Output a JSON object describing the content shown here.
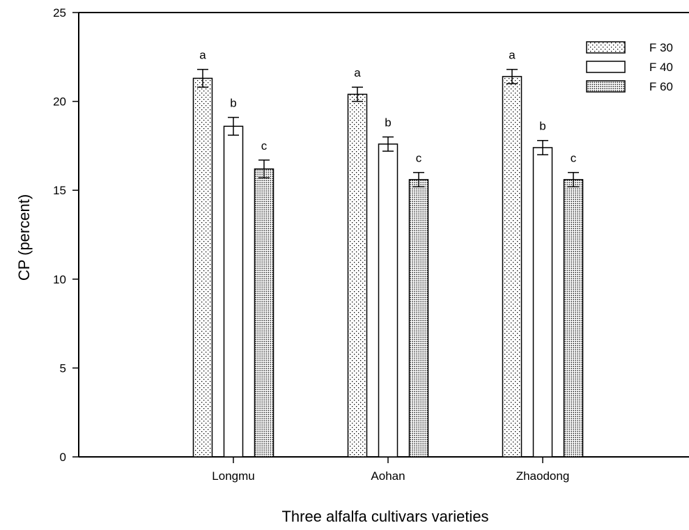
{
  "chart_data": {
    "type": "bar",
    "title": "",
    "xlabel": "Three alfalfa cultivars varieties",
    "ylabel": "CP (percent)",
    "ylim": [
      0,
      25
    ],
    "yticks": [
      0,
      5,
      10,
      15,
      20,
      25
    ],
    "grid": false,
    "legend_position": "top-right",
    "categories": [
      "Longmu",
      "Aohan",
      "Zhaodong"
    ],
    "series": [
      {
        "name": "F 30",
        "pattern": "sparse-dots",
        "values": [
          21.3,
          20.4,
          21.4
        ],
        "errors": [
          0.5,
          0.4,
          0.4
        ],
        "labels": [
          "a",
          "a",
          "a"
        ]
      },
      {
        "name": "F 40",
        "pattern": "blank",
        "values": [
          18.6,
          17.6,
          17.4
        ],
        "errors": [
          0.5,
          0.4,
          0.4
        ],
        "labels": [
          "b",
          "b",
          "b"
        ]
      },
      {
        "name": "F 60",
        "pattern": "dense-dots",
        "values": [
          16.2,
          15.6,
          15.6
        ],
        "errors": [
          0.5,
          0.4,
          0.4
        ],
        "labels": [
          "c",
          "c",
          "c"
        ]
      }
    ]
  }
}
